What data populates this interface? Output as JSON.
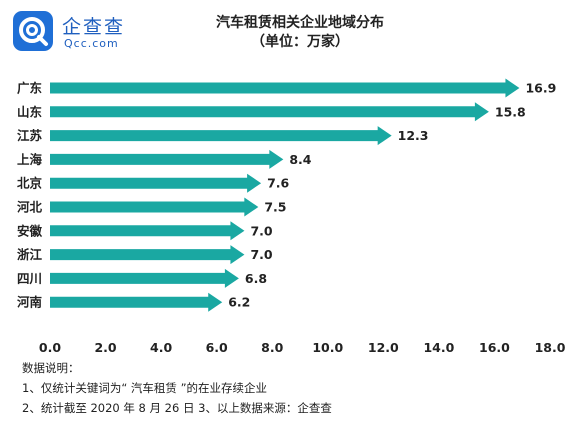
{
  "brand": {
    "name": "企查查",
    "domain": "Qcc.com",
    "color": "#1f5fbf"
  },
  "chart_data": {
    "type": "bar",
    "orientation": "horizontal",
    "title": "汽车租赁相关企业地域分布",
    "subtitle": "（单位：万家）",
    "categories": [
      "广东",
      "山东",
      "江苏",
      "上海",
      "北京",
      "河北",
      "安徽",
      "浙江",
      "四川",
      "河南"
    ],
    "values": [
      16.9,
      15.8,
      12.3,
      8.4,
      7.6,
      7.5,
      7.0,
      7.0,
      6.8,
      6.2
    ],
    "value_labels": [
      "16.9",
      "15.8",
      "12.3",
      "8.4",
      "7.6",
      "7.5",
      "7.0",
      "7.0",
      "6.8",
      "6.2"
    ],
    "xlim": [
      0,
      18
    ],
    "xticks": [
      "0.0",
      "2.0",
      "4.0",
      "6.0",
      "8.0",
      "10.0",
      "12.0",
      "14.0",
      "16.0",
      "18.0"
    ],
    "bar_style": "arrow",
    "bar_color": "#1aa8a2",
    "grid": false
  },
  "notes": {
    "heading": "数据说明：",
    "line1": "1、仅统计关键词为“ 汽车租赁 ”的在业存续企业",
    "line2": "2、统计截至 2020 年 8 月 26 日   3、以上数据来源：企查查"
  }
}
